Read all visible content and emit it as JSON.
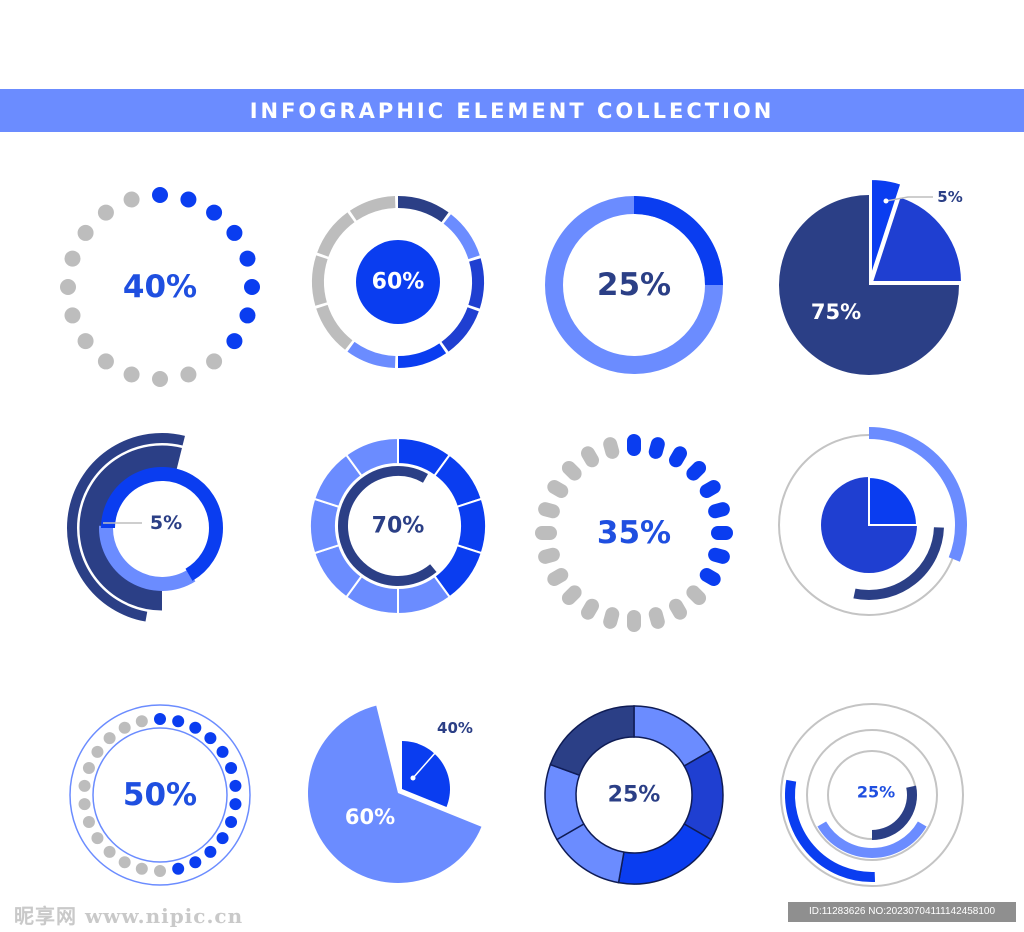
{
  "header": {
    "title": "INFOGRAPHIC ELEMENT COLLECTION"
  },
  "colors": {
    "banner": "#6b8cff",
    "bright_blue": "#0a3df0",
    "medium_blue": "#1f3fd1",
    "light_blue": "#6b8cff",
    "navy": "#2b3f86",
    "gray": "#bdbdbd",
    "label_blue": "#1f4fe0",
    "label_navy": "#2b3f86"
  },
  "chart_data": [
    {
      "type": "pie",
      "style": "dotted-ring",
      "values": [
        40
      ],
      "labels": [
        "40%"
      ]
    },
    {
      "type": "pie",
      "style": "segmented-ring-with-center-disc",
      "values": [
        60
      ],
      "labels": [
        "60%"
      ]
    },
    {
      "type": "pie",
      "style": "donut",
      "values": [
        25
      ],
      "labels": [
        "25%"
      ]
    },
    {
      "type": "pie",
      "style": "exploded-pie",
      "values": [
        75,
        20,
        5
      ],
      "labels": [
        "75%",
        "",
        "5%"
      ]
    },
    {
      "type": "pie",
      "style": "concentric-arcs",
      "values": [
        5
      ],
      "labels": [
        "5%"
      ]
    },
    {
      "type": "pie",
      "style": "segmented-donut",
      "values": [
        70
      ],
      "labels": [
        "70%"
      ]
    },
    {
      "type": "pie",
      "style": "dash-ring",
      "values": [
        35
      ],
      "labels": [
        "35%"
      ]
    },
    {
      "type": "pie",
      "style": "pie-with-arcs",
      "values": [
        25
      ],
      "labels": [
        ""
      ]
    },
    {
      "type": "pie",
      "style": "dotted-ring",
      "values": [
        50
      ],
      "labels": [
        "50%"
      ]
    },
    {
      "type": "pie",
      "style": "exploded-pie",
      "values": [
        60,
        40
      ],
      "labels": [
        "60%",
        "40%"
      ]
    },
    {
      "type": "pie",
      "style": "segmented-donut",
      "values": [
        25
      ],
      "labels": [
        "25%"
      ]
    },
    {
      "type": "pie",
      "style": "concentric-arcs",
      "values": [
        25
      ],
      "labels": [
        "25%"
      ]
    }
  ],
  "footer": {
    "watermark": "昵享网 www.nipic.cn",
    "image_id": "ID:11283626 NO:20230704111142458100"
  }
}
